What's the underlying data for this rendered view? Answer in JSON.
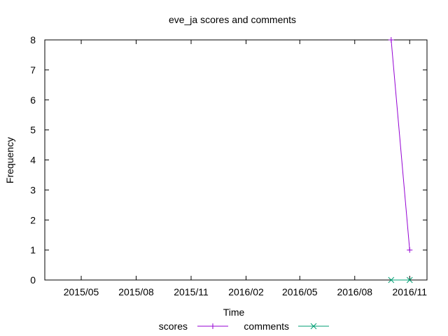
{
  "chart_data": {
    "type": "line",
    "title": "eve_ja scores and comments",
    "xlabel": "Time",
    "ylabel": "Frequency",
    "xlim": [
      "2015-03-01",
      "2016-11-30"
    ],
    "ylim": [
      0,
      8
    ],
    "x_ticks": [
      {
        "date": "2015-05-01",
        "label": "2015/05"
      },
      {
        "date": "2015-08-01",
        "label": "2015/08"
      },
      {
        "date": "2015-11-01",
        "label": "2015/11"
      },
      {
        "date": "2016-02-01",
        "label": "2016/02"
      },
      {
        "date": "2016-05-01",
        "label": "2016/05"
      },
      {
        "date": "2016-08-01",
        "label": "2016/08"
      },
      {
        "date": "2016-11-01",
        "label": "2016/11"
      }
    ],
    "y_ticks": [
      0,
      1,
      2,
      3,
      4,
      5,
      6,
      7,
      8
    ],
    "grid": false,
    "legend_position": "bottom",
    "series": [
      {
        "name": "scores",
        "color": "#9400d3",
        "marker": "plus",
        "points": [
          {
            "x": "2016-10-01",
            "y": 8
          },
          {
            "x": "2016-11-01",
            "y": 1
          }
        ]
      },
      {
        "name": "comments",
        "color": "#009e73",
        "marker": "cross",
        "points": [
          {
            "x": "2016-10-01",
            "y": 0
          },
          {
            "x": "2016-11-01",
            "y": 0
          }
        ]
      }
    ]
  }
}
